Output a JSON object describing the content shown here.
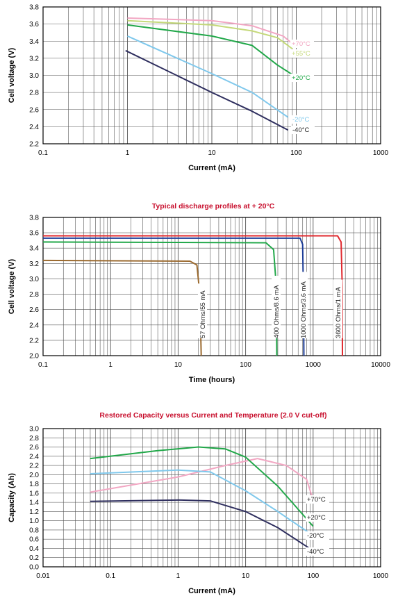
{
  "chart_data": [
    {
      "type": "line",
      "title": "",
      "xlabel": "Current (mA)",
      "ylabel": "Cell voltage (V)",
      "xscale": "log",
      "xlim": [
        0.1,
        1000
      ],
      "ylim": [
        2.2,
        3.8
      ],
      "xticks": [
        "0.1",
        "1",
        "10",
        "100",
        "1000"
      ],
      "yticks": [
        "3.8",
        "3.6",
        "3.4",
        "3.2",
        "3.0",
        "2.8",
        "2.6",
        "2.4",
        "2.2"
      ],
      "series": [
        {
          "name": "+70°C",
          "color": "#f2a7c3",
          "points": [
            [
              1,
              3.67
            ],
            [
              10,
              3.64
            ],
            [
              30,
              3.58
            ],
            [
              70,
              3.46
            ],
            [
              90,
              3.37
            ]
          ]
        },
        {
          "name": "+55°C",
          "color": "#c5d97a",
          "points": [
            [
              1,
              3.64
            ],
            [
              10,
              3.59
            ],
            [
              30,
              3.52
            ],
            [
              60,
              3.44
            ],
            [
              90,
              3.31
            ]
          ]
        },
        {
          "name": "+20°C",
          "color": "#22a84a",
          "points": [
            [
              1,
              3.59
            ],
            [
              10,
              3.46
            ],
            [
              30,
              3.35
            ],
            [
              60,
              3.12
            ],
            [
              100,
              2.98
            ]
          ]
        },
        {
          "name": "-20°C",
          "color": "#7fc8ec",
          "points": [
            [
              1,
              3.46
            ],
            [
              10,
              3.02
            ],
            [
              30,
              2.8
            ],
            [
              80,
              2.51
            ]
          ]
        },
        {
          "name": "-40°C",
          "color": "#2e2e5e",
          "points": [
            [
              0.95,
              3.29
            ],
            [
              10,
              2.8
            ],
            [
              30,
              2.58
            ],
            [
              80,
              2.36
            ]
          ]
        }
      ]
    },
    {
      "type": "line",
      "title": "Typical discharge profiles at + 20°C",
      "xlabel": "Time (hours)",
      "ylabel": "Cell voltage (V)",
      "xscale": "log",
      "xlim": [
        0.1,
        10000
      ],
      "ylim": [
        2.0,
        3.8
      ],
      "xticks": [
        "0.1",
        "1",
        "10",
        "100",
        "1000",
        "10000"
      ],
      "yticks": [
        "3.8",
        "3.6",
        "3.4",
        "3.2",
        "3.0",
        "2.8",
        "2.6",
        "2.4",
        "2.2",
        "2.0"
      ],
      "series": [
        {
          "name": "57 Ohms/55 mA",
          "color": "#9b6a2f",
          "points": [
            [
              0.1,
              3.24
            ],
            [
              15,
              3.23
            ],
            [
              19,
              3.18
            ],
            [
              21,
              2.8
            ],
            [
              22,
              2.0
            ]
          ]
        },
        {
          "name": "400 Ohms/8.6 mA",
          "color": "#22a84a",
          "points": [
            [
              0.1,
              3.48
            ],
            [
              200,
              3.47
            ],
            [
              260,
              3.38
            ],
            [
              285,
              2.9
            ],
            [
              290,
              2.0
            ]
          ]
        },
        {
          "name": "1000 Ohms/3.6 mA",
          "color": "#1f3f99",
          "points": [
            [
              0.1,
              3.53
            ],
            [
              640,
              3.53
            ],
            [
              700,
              3.45
            ],
            [
              720,
              2.8
            ],
            [
              730,
              2.0
            ]
          ]
        },
        {
          "name": "3600 Ohms/1 mA",
          "color": "#e0282e",
          "points": [
            [
              0.1,
              3.56
            ],
            [
              2300,
              3.56
            ],
            [
              2600,
              3.48
            ],
            [
              2700,
              2.9
            ],
            [
              2720,
              2.0
            ]
          ]
        }
      ]
    },
    {
      "type": "line",
      "title": "Restored Capacity versus Current and Temperature (2.0 V cut-off)",
      "xlabel": "Current (mA)",
      "ylabel": "Capacity (Ah)",
      "xscale": "log",
      "xlim": [
        0.01,
        1000
      ],
      "ylim": [
        0.0,
        3.0
      ],
      "xticks": [
        "0.01",
        "0.1",
        "1",
        "10",
        "100",
        "1000"
      ],
      "yticks": [
        "3.0",
        "2.8",
        "2.6",
        "2.4",
        "2.2",
        "2.0",
        "1.8",
        "1.6",
        "1.4",
        "1.2",
        "1.0",
        "0.8",
        "0.6",
        "0.4",
        "0.2",
        "0.0"
      ],
      "series": [
        {
          "name": "+70°C",
          "color": "#f2a7c3",
          "points": [
            [
              0.05,
              1.62
            ],
            [
              1,
              1.95
            ],
            [
              5,
              2.2
            ],
            [
              15,
              2.35
            ],
            [
              40,
              2.2
            ],
            [
              80,
              1.9
            ],
            [
              100,
              1.45
            ]
          ]
        },
        {
          "name": "+20°C",
          "color": "#22a84a",
          "points": [
            [
              0.05,
              2.35
            ],
            [
              0.5,
              2.52
            ],
            [
              2,
              2.6
            ],
            [
              5,
              2.56
            ],
            [
              10,
              2.38
            ],
            [
              30,
              1.75
            ],
            [
              100,
              0.88
            ]
          ]
        },
        {
          "name": "-20°C",
          "color": "#7fc8ec",
          "points": [
            [
              0.05,
              2.02
            ],
            [
              1,
              2.1
            ],
            [
              3,
              2.06
            ],
            [
              10,
              1.65
            ],
            [
              30,
              1.2
            ],
            [
              100,
              0.68
            ]
          ]
        },
        {
          "name": "-40°C",
          "color": "#2e2e5e",
          "points": [
            [
              0.05,
              1.42
            ],
            [
              1,
              1.45
            ],
            [
              3,
              1.43
            ],
            [
              10,
              1.2
            ],
            [
              30,
              0.85
            ],
            [
              100,
              0.35
            ]
          ]
        }
      ]
    }
  ]
}
